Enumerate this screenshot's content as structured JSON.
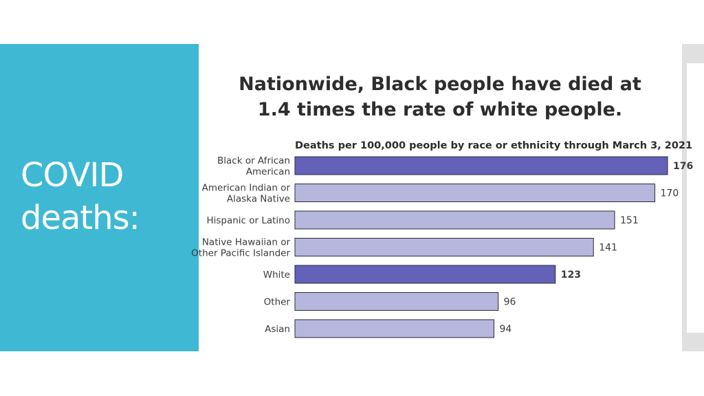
{
  "slide": {
    "title_lines": [
      "COVID",
      "deaths:"
    ],
    "panel_color": "#3fb8d3"
  },
  "chart_data": {
    "type": "bar",
    "orientation": "horizontal",
    "title_lines": [
      "Nationwide, Black people have died at",
      "1.4 times the rate of white people."
    ],
    "subtitle": "Deaths per 100,000 people by race or ethnicity through March 3, 2021",
    "categories": [
      [
        "Black or African",
        "American"
      ],
      [
        "American Indian or",
        "Alaska Native"
      ],
      [
        "Hispanic or Latino"
      ],
      [
        "Native Hawaiian or",
        "Other Pacific Islander"
      ],
      [
        "White"
      ],
      [
        "Other"
      ],
      [
        "Asian"
      ]
    ],
    "values": [
      176,
      170,
      151,
      141,
      123,
      96,
      94
    ],
    "highlighted": [
      true,
      false,
      false,
      false,
      true,
      false,
      false
    ],
    "xlim": [
      0,
      176
    ],
    "colors": {
      "highlight": "#6361b8",
      "normal": "#b7b6dd",
      "bar_stroke": "#2a2a3a",
      "label": "#3c3c3c",
      "value": "#3c3c3c"
    }
  }
}
